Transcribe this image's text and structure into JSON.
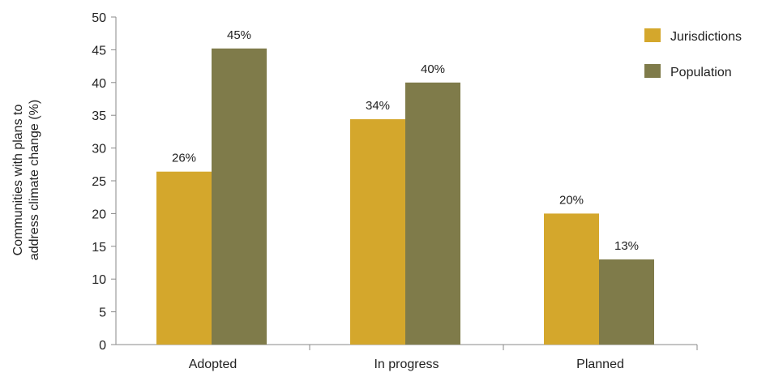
{
  "colors": {
    "jurisdictions": "#d4a72c",
    "population": "#7f7b4a",
    "axis": "#888888"
  },
  "chart_data": {
    "type": "bar",
    "categories": [
      "Adopted",
      "In progress",
      "Planned"
    ],
    "series": [
      {
        "name": "Jurisdictions",
        "values": [
          26.4,
          34.4,
          20
        ],
        "labels": [
          "26%",
          "34%",
          "20%"
        ]
      },
      {
        "name": "Population",
        "values": [
          45.2,
          40,
          13
        ],
        "labels": [
          "45%",
          "40%",
          "13%"
        ]
      }
    ],
    "ylabel_lines": [
      "Communities with plans to",
      "address climate change (%)"
    ],
    "xlabel": "",
    "ylim": [
      0,
      50
    ],
    "yticks": [
      0,
      5,
      10,
      15,
      20,
      25,
      30,
      35,
      40,
      45,
      50
    ],
    "grid": false,
    "legend_position": "top-right"
  }
}
